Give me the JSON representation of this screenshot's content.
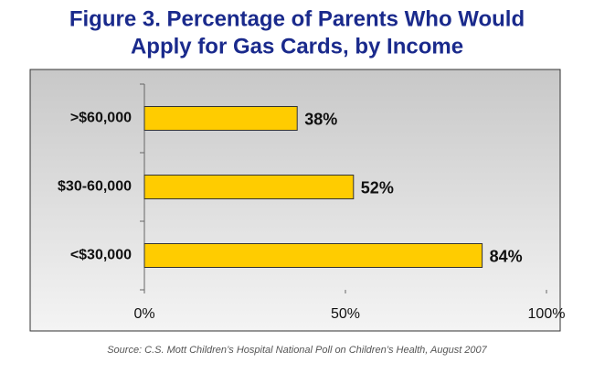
{
  "chart_data": {
    "type": "hbar",
    "title": [
      "Figure 3. Percentage of Parents Who Would",
      "Apply for Gas Cards, by Income"
    ],
    "categories": [
      ">$60,000",
      "$30-60,000",
      "<$30,000"
    ],
    "values": [
      38,
      52,
      84
    ],
    "value_labels": [
      "38%",
      "52%",
      "84%"
    ],
    "color": "#ffcc00",
    "xlim": [
      0,
      100
    ],
    "xticks": [
      {
        "value": 0,
        "label": "0%"
      },
      {
        "value": 50,
        "label": "50%"
      },
      {
        "value": 100,
        "label": "100%"
      }
    ],
    "source": "Source: C.S. Mott Children’s Hospital National Poll on Children’s Health, August 2007"
  }
}
